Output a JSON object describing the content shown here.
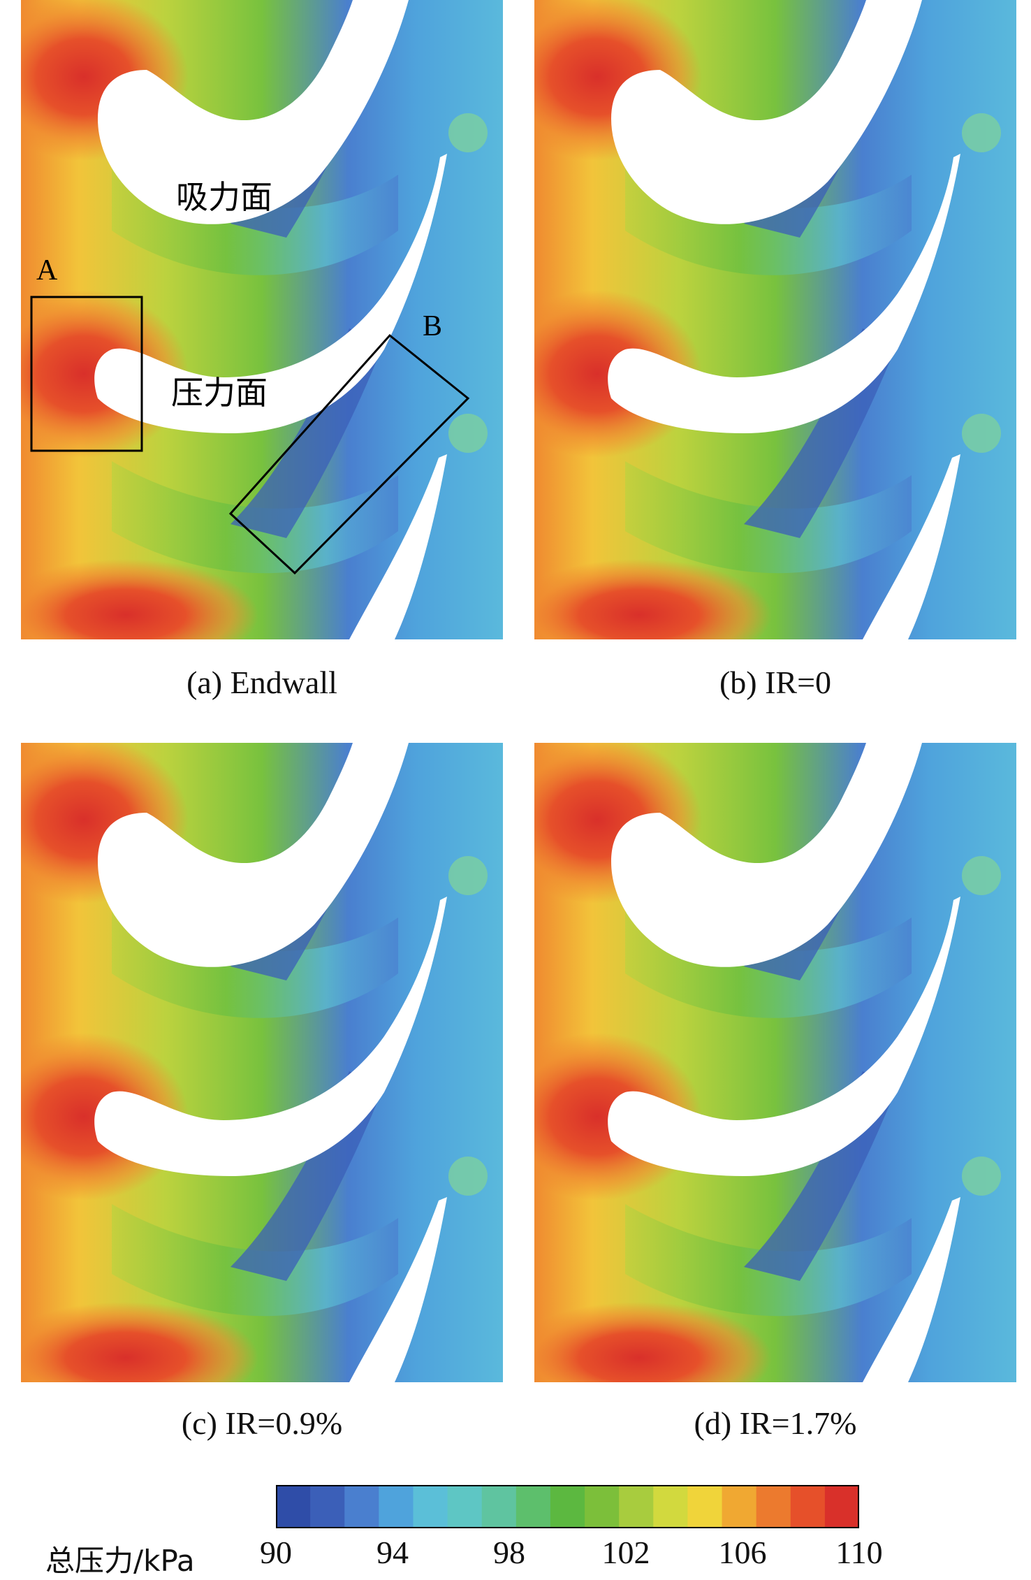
{
  "panels": [
    {
      "id": "a",
      "caption": "(a) Endwall"
    },
    {
      "id": "b",
      "caption": "(b) IR=0"
    },
    {
      "id": "c",
      "caption": "(c) IR=0.9%"
    },
    {
      "id": "d",
      "caption": "(d) IR=1.7%"
    }
  ],
  "annotations": {
    "suction_surface": "吸力面",
    "pressure_surface": "压力面",
    "box_a": "A",
    "box_b": "B"
  },
  "colorbar": {
    "label": "总压力/kPa",
    "ticks": [
      "90",
      "94",
      "98",
      "102",
      "106",
      "110"
    ],
    "min": 90,
    "max": 110,
    "levels": 15,
    "colors": [
      "#2f4da8",
      "#3b5fb8",
      "#4a7fcf",
      "#4fa3dc",
      "#5bbfd8",
      "#5ec6c4",
      "#5fc4a0",
      "#5dbf6c",
      "#5cb840",
      "#7cbf3a",
      "#a8cc3e",
      "#d2d93e",
      "#f0d43a",
      "#f0a832",
      "#ec7a2e",
      "#e6502a",
      "#d9302a"
    ]
  }
}
